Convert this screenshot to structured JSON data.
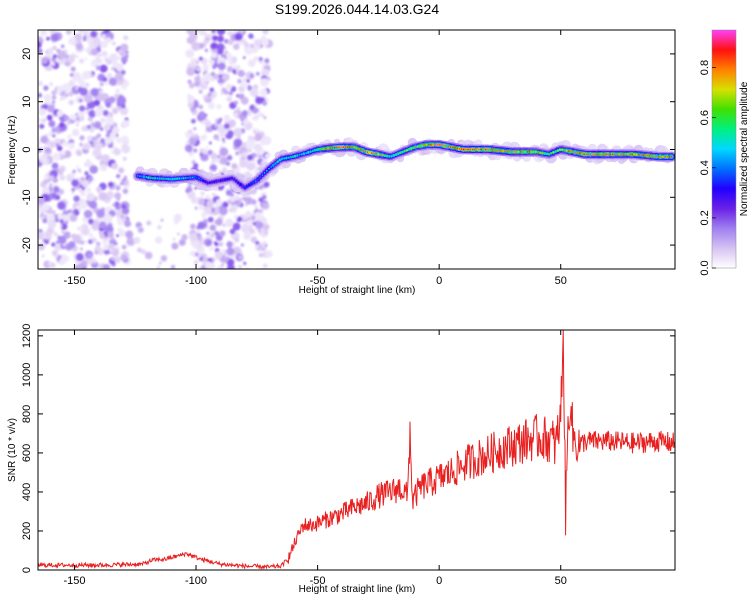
{
  "title": "S199.2026.044.14.03.G24",
  "chart_data": [
    {
      "type": "heatmap",
      "name": "spectrogram",
      "xlabel": "Height of straight line (km)",
      "ylabel": "Frequency (Hz)",
      "xlim": [
        -165,
        97
      ],
      "ylim": [
        -25,
        25
      ],
      "xticks": [
        -150,
        -100,
        -50,
        0,
        50
      ],
      "yticks": [
        -20,
        -10,
        0,
        10,
        20
      ],
      "colorbar": {
        "label": "Normalized spectral amplitude",
        "range": [
          0,
          0.95
        ],
        "ticks": [
          0.0,
          0.2,
          0.4,
          0.6,
          0.8
        ],
        "colors": [
          "#ffffff",
          "#d6c2f2",
          "#9f7ff0",
          "#6a21e6",
          "#2200ff",
          "#0070ff",
          "#00d8ff",
          "#00f080",
          "#40e000",
          "#d8e000",
          "#ff8000",
          "#ff1010",
          "#ff40ff"
        ]
      },
      "ridge": {
        "x": [
          -124,
          -118,
          -110,
          -100,
          -95,
          -85,
          -80,
          -75,
          -70,
          -65,
          -60,
          -55,
          -50,
          -45,
          -40,
          -35,
          -30,
          -25,
          -20,
          -15,
          -10,
          -5,
          0,
          5,
          10,
          20,
          30,
          40,
          45,
          50,
          55,
          60,
          70,
          80,
          90,
          96
        ],
        "y": [
          -5.5,
          -6,
          -6.2,
          -5.8,
          -7,
          -6,
          -8,
          -6.5,
          -4,
          -2,
          -1.5,
          -0.8,
          0,
          0.3,
          0.5,
          0.5,
          -0.5,
          -1,
          -1.5,
          -0.5,
          0.5,
          1,
          1,
          0.5,
          0,
          0,
          -0.5,
          -0.5,
          -1,
          0,
          -0.5,
          -1,
          -1,
          -1,
          -1.5,
          -1.5
        ],
        "amplitude": [
          0.45,
          0.55,
          0.5,
          0.45,
          0.3,
          0.3,
          0.35,
          0.4,
          0.45,
          0.55,
          0.55,
          0.5,
          0.6,
          0.8,
          0.9,
          0.75,
          0.85,
          0.8,
          0.55,
          0.6,
          0.7,
          0.8,
          0.9,
          0.85,
          0.9,
          0.9,
          0.85,
          0.75,
          0.6,
          0.7,
          0.85,
          0.9,
          0.9,
          0.8,
          0.85,
          0.8
        ]
      },
      "noise_regions": [
        {
          "x": [
            -165,
            -128
          ],
          "y": [
            -25,
            25
          ],
          "density": "high"
        },
        {
          "x": [
            -103,
            -70
          ],
          "y": [
            -25,
            25
          ],
          "density": "high"
        },
        {
          "x": [
            -128,
            -103
          ],
          "y": [
            -25,
            -14
          ],
          "density": "low"
        }
      ]
    },
    {
      "type": "line",
      "name": "snr",
      "xlabel": "Height of straight line (km)",
      "ylabel": "SNR (10 * v/v)",
      "xlim": [
        -165,
        97
      ],
      "ylim": [
        0,
        1230
      ],
      "xticks": [
        -150,
        -100,
        -50,
        0,
        50
      ],
      "yticks": [
        0,
        200,
        400,
        600,
        800,
        1000,
        1200
      ],
      "color": "#e82020",
      "series": [
        {
          "name": "SNR",
          "x": [
            -165,
            -140,
            -122,
            -118,
            -113,
            -108,
            -104,
            -98,
            -90,
            -80,
            -70,
            -65,
            -62,
            -59,
            -56,
            -52,
            -48,
            -44,
            -40,
            -35,
            -30,
            -25,
            -20,
            -16,
            -13,
            -12,
            -11,
            -8,
            -5,
            0,
            5,
            10,
            15,
            20,
            25,
            30,
            35,
            40,
            45,
            48,
            50,
            51,
            52,
            53,
            54,
            55,
            58,
            60,
            70,
            80,
            90,
            97
          ],
          "y": [
            25,
            25,
            30,
            50,
            55,
            70,
            85,
            55,
            30,
            20,
            15,
            20,
            60,
            150,
            230,
            230,
            250,
            270,
            290,
            320,
            340,
            380,
            400,
            420,
            380,
            730,
            350,
            420,
            440,
            470,
            500,
            540,
            570,
            590,
            620,
            640,
            660,
            680,
            670,
            640,
            780,
            1230,
            300,
            720,
            900,
            680,
            640,
            660,
            660,
            650,
            660,
            650
          ]
        }
      ]
    }
  ]
}
